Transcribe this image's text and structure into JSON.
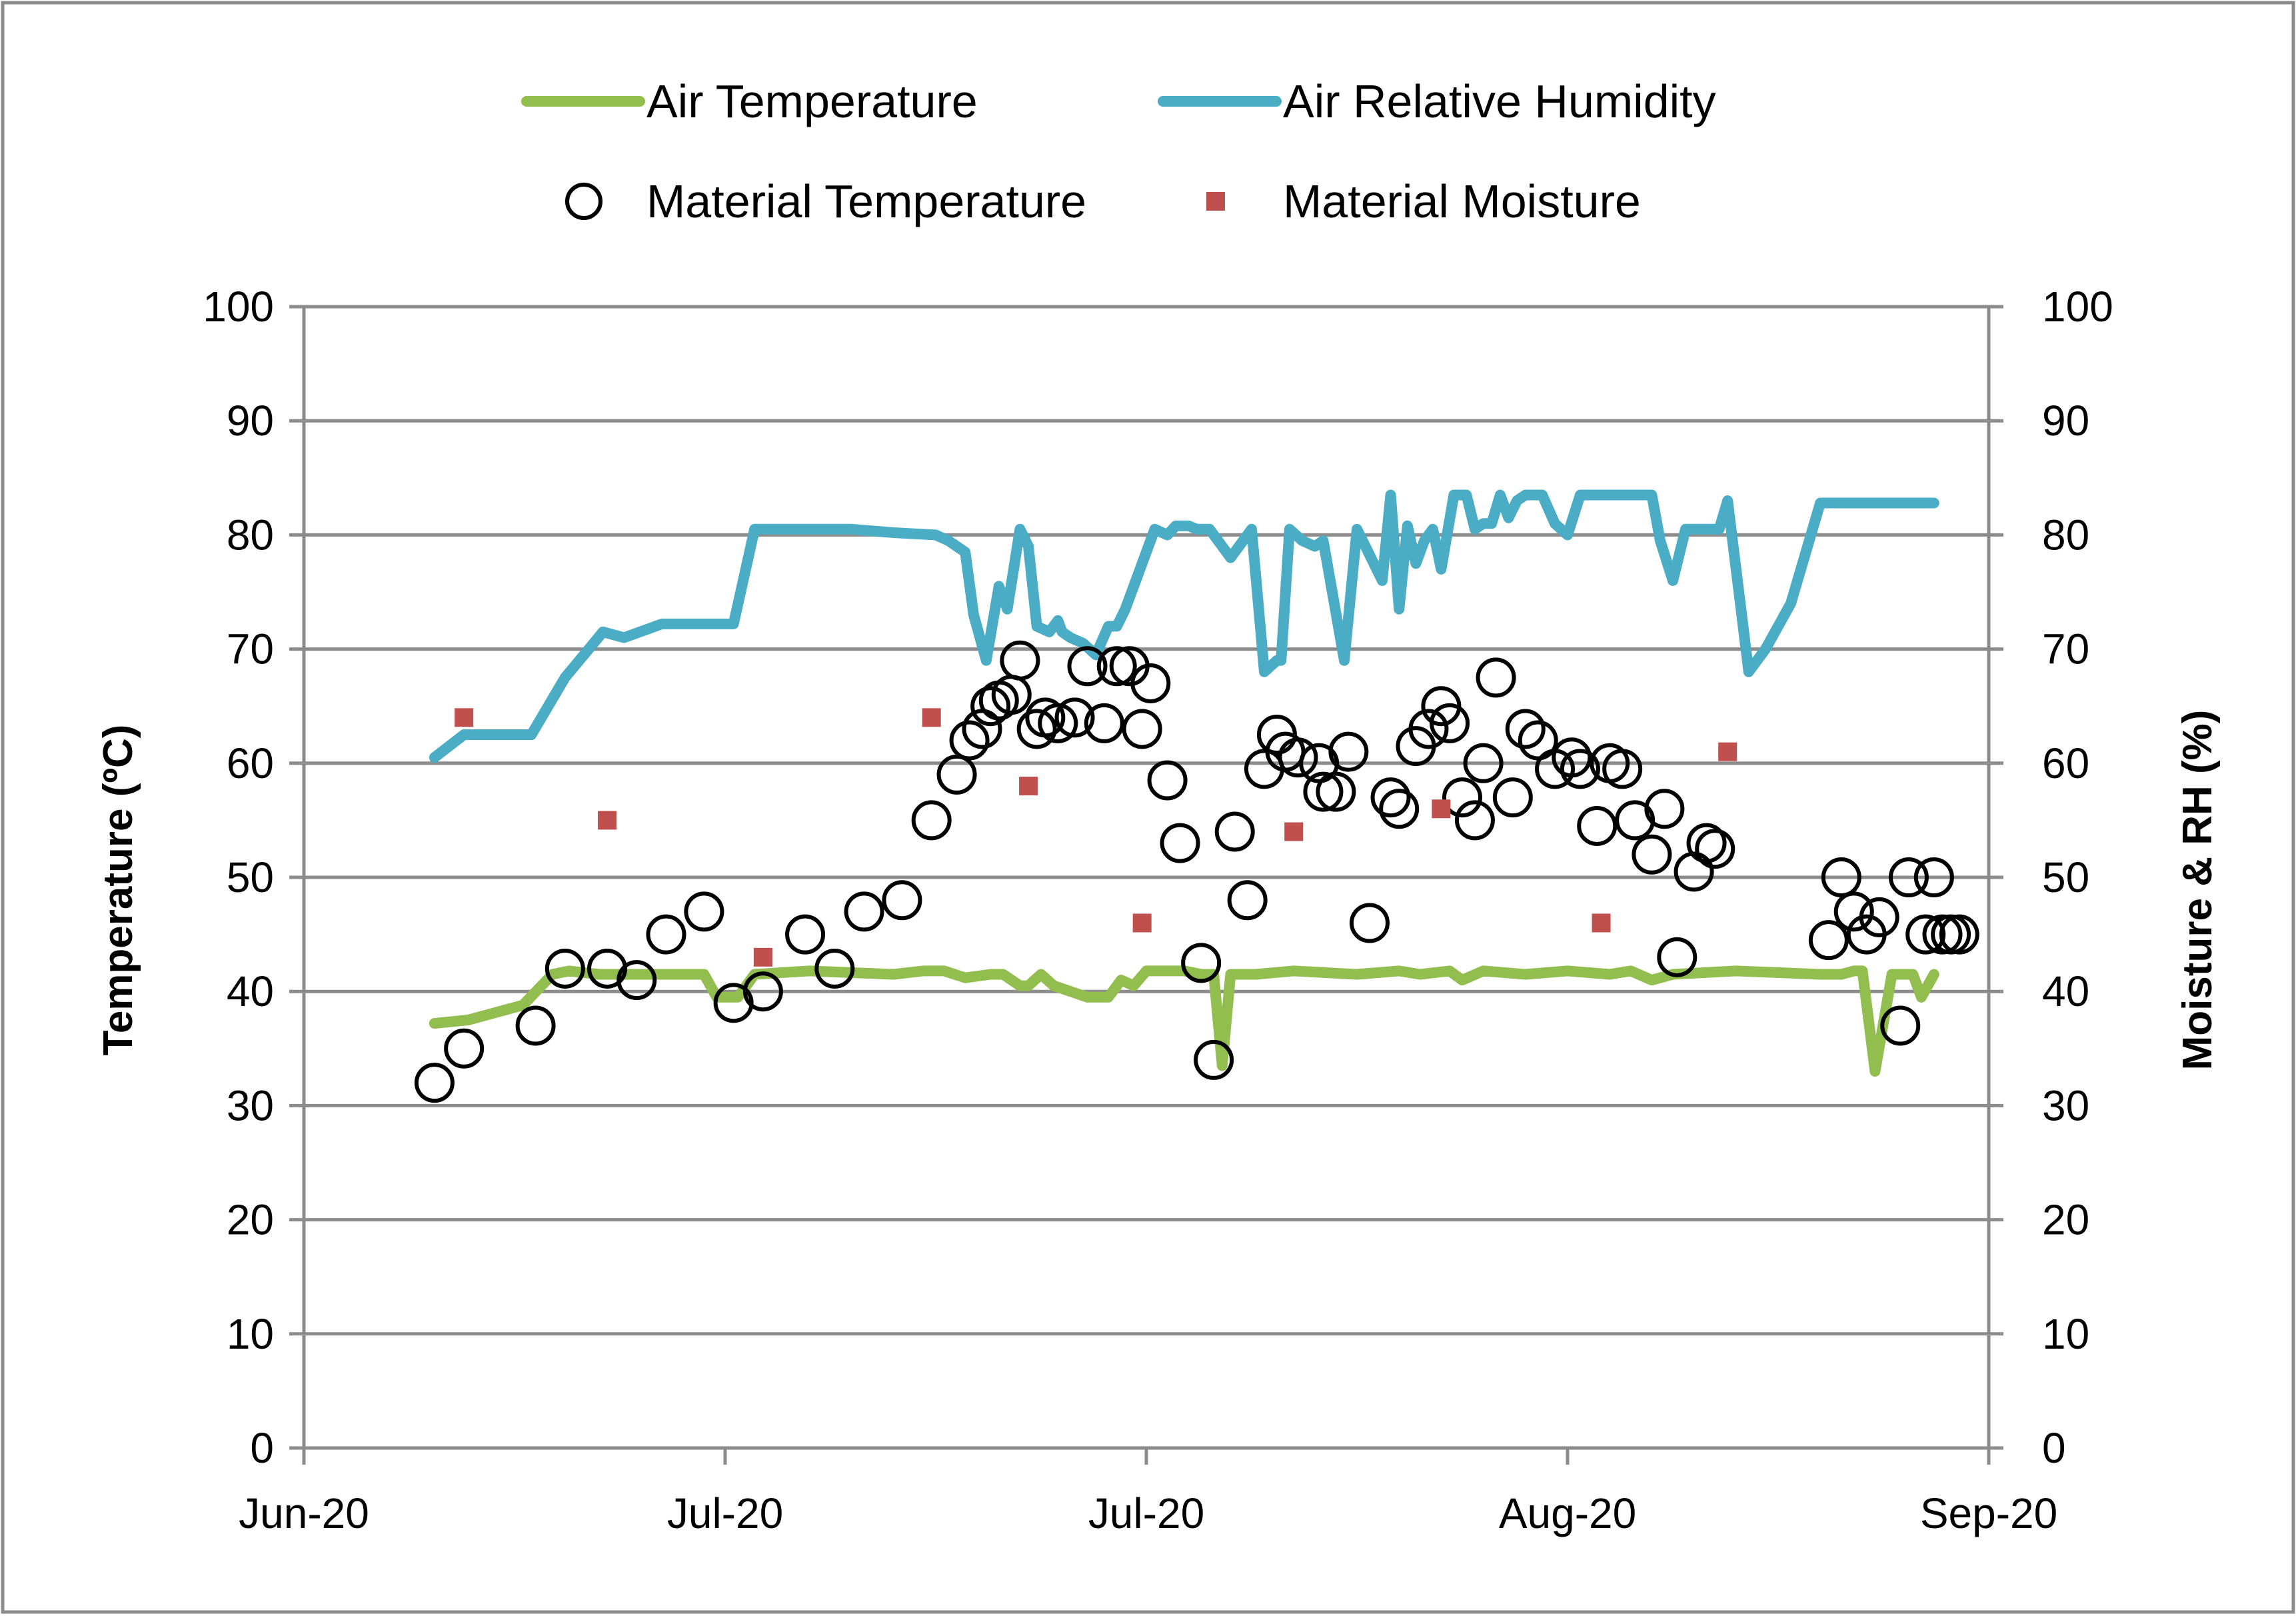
{
  "chart_data": {
    "type": "line",
    "title": "",
    "xlabel": "",
    "ylabel": "Temperature (ºC)",
    "y2label": "Moisture & RH (%)",
    "ylim": [
      0,
      100
    ],
    "y2lim": [
      0,
      100
    ],
    "yticks": [
      0,
      10,
      20,
      30,
      40,
      50,
      60,
      70,
      80,
      90,
      100
    ],
    "y2ticks": [
      0,
      10,
      20,
      30,
      40,
      50,
      60,
      70,
      80,
      90,
      100
    ],
    "xlim": [
      0,
      4
    ],
    "xticks": [
      {
        "value": 0,
        "label": "Jun-20"
      },
      {
        "value": 1,
        "label": "Jul-20"
      },
      {
        "value": 2,
        "label": "Jul-20"
      },
      {
        "value": 3,
        "label": "Aug-20"
      },
      {
        "value": 4,
        "label": "Sep-20"
      }
    ],
    "grid": "horizontal",
    "legend_position": "top",
    "series": [
      {
        "name": "Air Temperature",
        "style": "line",
        "color": "#92bd4f",
        "axis": "left",
        "x": [
          0.31,
          0.39,
          0.52,
          0.59,
          0.63,
          0.7,
          0.77,
          0.85,
          0.95,
          0.98,
          1.03,
          1.07,
          1.2,
          1.4,
          1.47,
          1.52,
          1.57,
          1.63,
          1.66,
          1.7,
          1.72,
          1.75,
          1.78,
          1.82,
          1.86,
          1.91,
          1.94,
          1.97,
          2.0,
          2.03,
          2.06,
          2.09,
          2.13,
          2.16,
          2.18,
          2.2,
          2.22,
          2.26,
          2.35,
          2.5,
          2.6,
          2.65,
          2.72,
          2.75,
          2.8,
          2.9,
          3.0,
          3.1,
          3.15,
          3.2,
          3.25,
          3.4,
          3.6,
          3.65,
          3.68,
          3.7,
          3.73,
          3.77,
          3.8,
          3.82,
          3.84,
          3.87
        ],
        "y": [
          37.2,
          37.5,
          38.8,
          41.5,
          41.8,
          41.5,
          41.5,
          41.5,
          41.5,
          39.5,
          39.5,
          41.5,
          41.8,
          41.5,
          41.8,
          41.8,
          41.2,
          41.5,
          41.5,
          40.5,
          40.5,
          41.5,
          40.5,
          40.0,
          39.5,
          39.5,
          41.0,
          40.5,
          41.8,
          41.8,
          41.8,
          41.8,
          41.5,
          41.5,
          33.5,
          41.5,
          41.5,
          41.5,
          41.8,
          41.5,
          41.8,
          41.5,
          41.8,
          41.0,
          41.8,
          41.5,
          41.8,
          41.5,
          41.8,
          41.0,
          41.5,
          41.8,
          41.5,
          41.5,
          41.8,
          41.8,
          33.0,
          41.5,
          41.5,
          41.5,
          39.5,
          41.5
        ]
      },
      {
        "name": "Air Relative Humidity",
        "style": "line",
        "color": "#4bacc6",
        "axis": "right",
        "x": [
          0.31,
          0.38,
          0.54,
          0.62,
          0.71,
          0.76,
          0.85,
          0.97,
          1.02,
          1.07,
          1.2,
          1.3,
          1.4,
          1.5,
          1.53,
          1.57,
          1.59,
          1.62,
          1.65,
          1.67,
          1.7,
          1.72,
          1.74,
          1.77,
          1.79,
          1.8,
          1.82,
          1.85,
          1.88,
          1.91,
          1.93,
          1.95,
          1.98,
          2.02,
          2.05,
          2.07,
          2.1,
          2.12,
          2.15,
          2.2,
          2.25,
          2.28,
          2.31,
          2.32,
          2.34,
          2.37,
          2.4,
          2.42,
          2.47,
          2.5,
          2.56,
          2.58,
          2.6,
          2.62,
          2.64,
          2.66,
          2.68,
          2.7,
          2.73,
          2.76,
          2.78,
          2.8,
          2.82,
          2.84,
          2.86,
          2.88,
          2.9,
          2.94,
          2.97,
          3.0,
          3.03,
          3.05,
          3.09,
          3.14,
          3.17,
          3.2,
          3.22,
          3.25,
          3.28,
          3.31,
          3.36,
          3.38,
          3.43,
          3.47,
          3.53,
          3.6,
          3.63,
          3.66,
          3.68,
          3.71,
          3.74,
          3.76,
          3.79,
          3.81,
          3.82,
          3.84,
          3.87
        ],
        "y": [
          60.5,
          62.5,
          62.5,
          67.5,
          71.5,
          71.0,
          72.2,
          72.2,
          72.2,
          80.5,
          80.5,
          80.5,
          80.2,
          80.0,
          79.5,
          78.5,
          73.0,
          69.0,
          75.5,
          73.5,
          80.5,
          79.0,
          72.0,
          71.5,
          72.5,
          71.5,
          71.0,
          70.5,
          69.5,
          72.0,
          72.0,
          73.5,
          76.5,
          80.5,
          80.0,
          80.8,
          80.8,
          80.5,
          80.5,
          78.0,
          80.5,
          68.0,
          69.0,
          69.0,
          80.5,
          79.5,
          79.0,
          79.5,
          69.0,
          80.5,
          76.0,
          83.5,
          73.5,
          80.8,
          77.5,
          79.5,
          80.5,
          77.0,
          83.5,
          83.5,
          80.5,
          81.0,
          81.0,
          83.5,
          81.5,
          83.0,
          83.5,
          83.5,
          81.0,
          80.0,
          83.5,
          83.5,
          83.5,
          83.5,
          83.5,
          83.5,
          79.5,
          76.0,
          80.5,
          80.5,
          80.5,
          83.0,
          68.0,
          70.0,
          74.0,
          82.8,
          82.8,
          82.8,
          82.8,
          82.8,
          82.8,
          82.8,
          82.8,
          82.8,
          82.8,
          82.8,
          82.8
        ]
      },
      {
        "name": "Material Temperature",
        "style": "markers",
        "marker": "circle",
        "color": "#000000",
        "axis": "left",
        "x": [
          0.31,
          0.38,
          0.55,
          0.62,
          0.72,
          0.79,
          0.86,
          0.95,
          1.02,
          1.09,
          1.19,
          1.26,
          1.33,
          1.42,
          1.49,
          1.55,
          1.58,
          1.61,
          1.63,
          1.65,
          1.68,
          1.7,
          1.74,
          1.76,
          1.79,
          1.83,
          1.86,
          1.9,
          1.93,
          1.96,
          1.99,
          2.01,
          2.05,
          2.08,
          2.13,
          2.16,
          2.21,
          2.24,
          2.28,
          2.31,
          2.33,
          2.36,
          2.41,
          2.42,
          2.45,
          2.48,
          2.53,
          2.58,
          2.6,
          2.64,
          2.67,
          2.7,
          2.72,
          2.75,
          2.78,
          2.8,
          2.83,
          2.87,
          2.9,
          2.93,
          2.97,
          3.01,
          3.03,
          3.07,
          3.1,
          3.13,
          3.16,
          3.2,
          3.23,
          3.26,
          3.3,
          3.33,
          3.35,
          3.62,
          3.65,
          3.68,
          3.71,
          3.74,
          3.79,
          3.81,
          3.85,
          3.87,
          3.89,
          3.91,
          3.93
        ],
        "y": [
          32,
          35,
          37,
          42,
          42,
          41,
          45,
          47,
          39,
          40,
          45,
          42,
          47,
          48,
          55,
          59,
          62,
          63,
          65,
          65.5,
          66,
          69,
          63,
          64,
          63.5,
          64,
          68.5,
          63.5,
          68.5,
          68.5,
          63,
          67,
          58.5,
          53,
          42.5,
          34,
          54,
          48,
          59.5,
          62.5,
          61,
          60.5,
          60,
          57.5,
          57.5,
          61,
          46,
          57,
          56,
          61.5,
          63,
          65,
          63.5,
          57,
          55,
          60,
          67.5,
          57,
          63,
          62,
          59.5,
          60.5,
          59.5,
          54.5,
          60,
          59.5,
          55,
          52,
          56,
          43,
          50.5,
          53,
          52.5,
          44.5,
          50,
          47,
          45,
          46.5,
          37,
          50,
          45,
          50,
          45,
          45,
          45
        ]
      },
      {
        "name": "Material Moisture",
        "style": "markers",
        "marker": "square",
        "color": "#c0504d",
        "axis": "right",
        "x": [
          0.38,
          0.72,
          1.09,
          1.49,
          1.72,
          1.99,
          2.35,
          2.7,
          3.08,
          3.38
        ],
        "y": [
          64,
          55,
          43,
          64,
          58,
          46,
          54,
          56,
          46,
          61
        ]
      }
    ]
  }
}
